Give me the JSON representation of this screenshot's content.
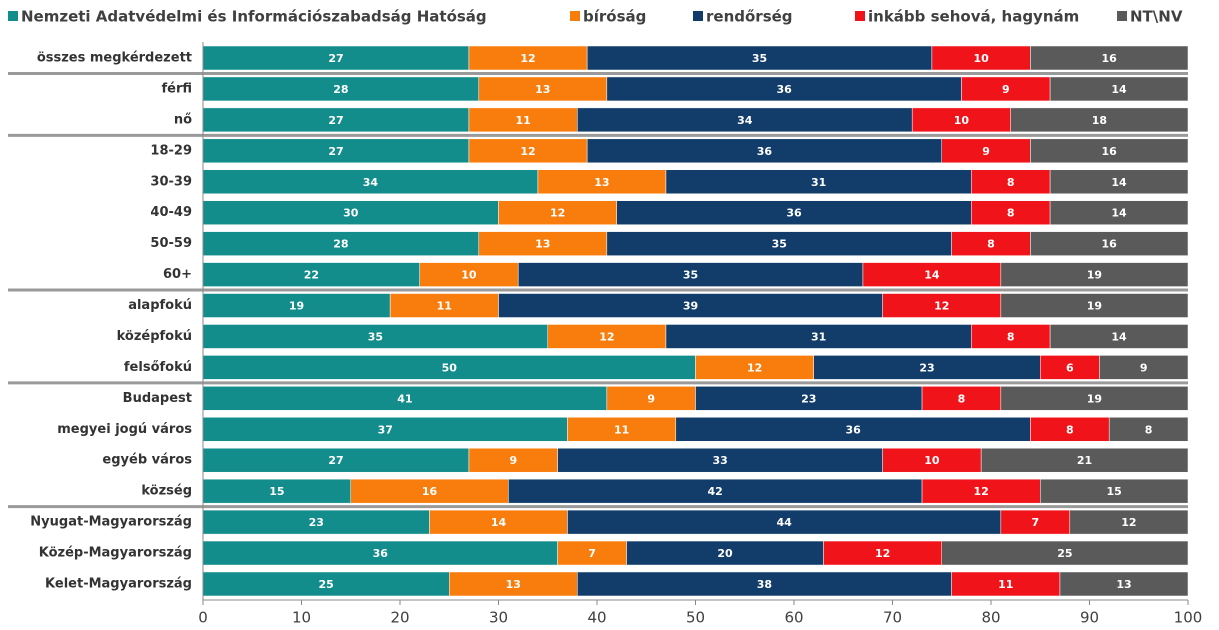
{
  "chart_data": {
    "type": "stacked-barh",
    "categories": [
      "összes megkérdezett",
      "férfi",
      "nő",
      "18-29",
      "30-39",
      "40-49",
      "50-59",
      "60+",
      "alapfokú",
      "középfokú",
      "felsőfokú",
      "Budapest",
      "megyei jogú város",
      "egyéb város",
      "község",
      "Nyugat-Magyarország",
      "Közép-Magyarország",
      "Kelet-Magyarország"
    ],
    "series": [
      {
        "name": "Nemzeti Adatvédelmi és Információszabadság Hatóság",
        "color": "#138d8c",
        "values": [
          27,
          28,
          27,
          27,
          34,
          30,
          28,
          22,
          19,
          35,
          50,
          41,
          37,
          27,
          15,
          23,
          36,
          25
        ]
      },
      {
        "name": "bíróság",
        "color": "#f97d0d",
        "values": [
          12,
          13,
          11,
          12,
          13,
          12,
          13,
          10,
          11,
          12,
          12,
          9,
          11,
          9,
          16,
          14,
          7,
          13
        ]
      },
      {
        "name": "rendőrség",
        "color": "#123d6b",
        "values": [
          35,
          36,
          34,
          36,
          31,
          36,
          35,
          35,
          39,
          31,
          23,
          23,
          36,
          33,
          42,
          44,
          20,
          38
        ]
      },
      {
        "name": "inkább sehová, hagynám",
        "color": "#f0141a",
        "values": [
          10,
          9,
          10,
          9,
          8,
          8,
          8,
          14,
          12,
          8,
          6,
          8,
          8,
          10,
          12,
          7,
          12,
          11
        ]
      },
      {
        "name": "NT\\NV",
        "color": "#5a5a5a",
        "values": [
          16,
          14,
          18,
          16,
          14,
          14,
          16,
          19,
          19,
          14,
          9,
          19,
          8,
          21,
          15,
          12,
          25,
          13
        ]
      }
    ],
    "xlim": [
      0,
      100
    ],
    "xticks": [
      0,
      10,
      20,
      30,
      40,
      50,
      60,
      70,
      80,
      90,
      100
    ]
  }
}
